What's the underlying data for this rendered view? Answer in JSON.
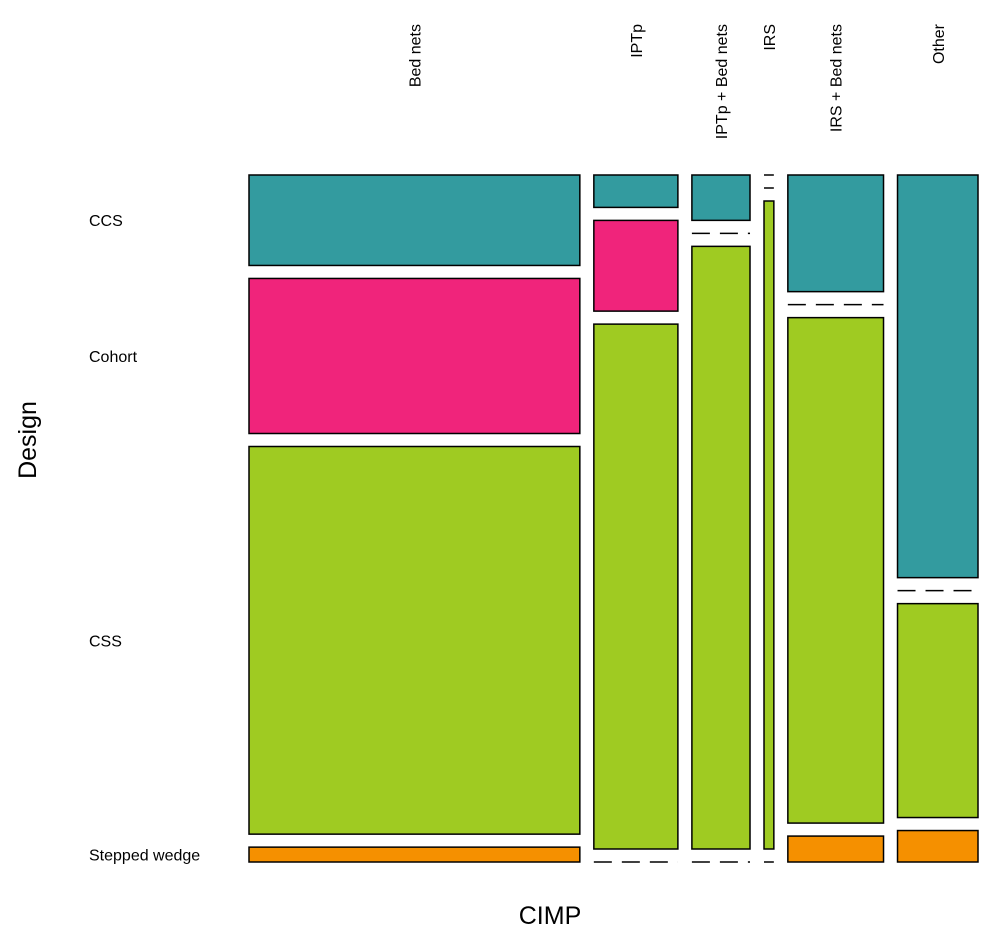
{
  "chart_data": {
    "type": "mosaic",
    "x_title": "CIMP",
    "y_title": "Design",
    "columns": [
      "Bed nets",
      "IPTp",
      "IPTp + Bed nets",
      "IRS",
      "IRS + Bed nets",
      "Other"
    ],
    "rows": [
      "CCS",
      "Cohort",
      "CSS",
      "Stepped wedge"
    ],
    "column_share": [
      0.37,
      0.094,
      0.065,
      0.011,
      0.107,
      0.09
    ],
    "row_share": {
      "Bed nets": [
        0.14,
        0.24,
        0.6,
        0.023
      ],
      "IPTp": [
        0.05,
        0.14,
        0.81,
        0
      ],
      "IPTp + Bed nets": [
        0.07,
        0,
        0.93,
        0
      ],
      "IRS": [
        0,
        0,
        1.0,
        0
      ],
      "IRS + Bed nets": [
        0.18,
        0,
        0.78,
        0.04
      ],
      "Other": [
        0.64,
        0,
        0.34,
        0.05
      ]
    },
    "colors": [
      "#339b9f",
      "#f0247b",
      "#9fcb22",
      "#f59000"
    ],
    "legend": "none",
    "grid": false
  }
}
